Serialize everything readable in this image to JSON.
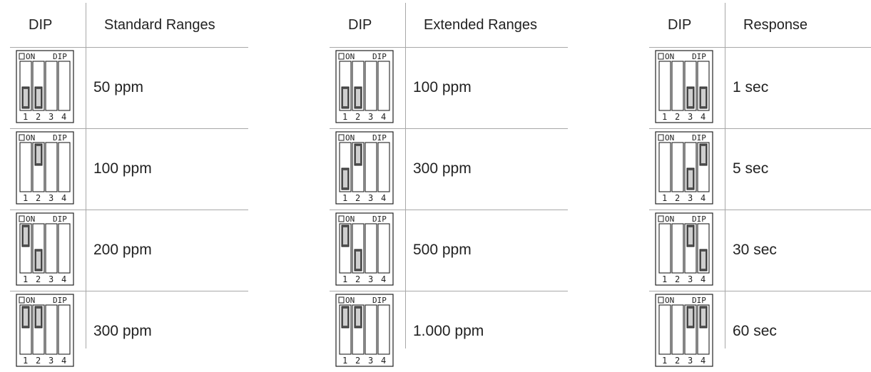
{
  "tables": [
    {
      "header_dip": "DIP",
      "header_value": "Standard Ranges",
      "rows": [
        {
          "value": "50 ppm",
          "switches": [
            true,
            true,
            false,
            false
          ]
        },
        {
          "value": "100 ppm",
          "switches": [
            false,
            true,
            false,
            false
          ],
          "raised": [
            false,
            true,
            false,
            false
          ]
        },
        {
          "value": "200 ppm",
          "switches": [
            true,
            true,
            false,
            false
          ],
          "raised": [
            true,
            false,
            false,
            false
          ]
        },
        {
          "value": "300 ppm",
          "switches": [
            true,
            true,
            false,
            false
          ],
          "raised": [
            true,
            true,
            false,
            false
          ]
        }
      ]
    },
    {
      "header_dip": "DIP",
      "header_value": "Extended Ranges",
      "rows": [
        {
          "value": "100 ppm",
          "switches": [
            true,
            true,
            false,
            false
          ]
        },
        {
          "value": "300 ppm",
          "switches": [
            true,
            true,
            false,
            false
          ],
          "raised": [
            false,
            true,
            false,
            false
          ]
        },
        {
          "value": "500 ppm",
          "switches": [
            true,
            true,
            false,
            false
          ],
          "raised": [
            true,
            false,
            false,
            false
          ]
        },
        {
          "value": "1.000 ppm",
          "switches": [
            true,
            true,
            false,
            false
          ],
          "raised": [
            true,
            true,
            false,
            false
          ]
        }
      ]
    },
    {
      "header_dip": "DIP",
      "header_value": "Response",
      "rows": [
        {
          "value": "1 sec",
          "switches": [
            false,
            false,
            true,
            true
          ]
        },
        {
          "value": "5 sec",
          "switches": [
            false,
            false,
            true,
            true
          ],
          "raised": [
            false,
            false,
            false,
            true
          ]
        },
        {
          "value": "30 sec",
          "switches": [
            false,
            false,
            true,
            true
          ],
          "raised": [
            false,
            false,
            true,
            false
          ]
        },
        {
          "value": "60 sec",
          "switches": [
            false,
            false,
            true,
            true
          ],
          "raised": [
            false,
            false,
            true,
            true
          ]
        }
      ]
    }
  ],
  "switch_labels": {
    "on": "ON",
    "dip": "DIP",
    "numbers": [
      "1",
      "2",
      "3",
      "4"
    ]
  }
}
